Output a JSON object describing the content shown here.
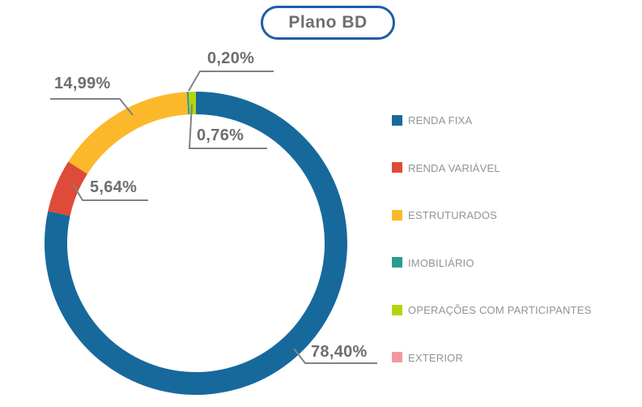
{
  "title": {
    "text": "Plano BD"
  },
  "colors": {
    "title_border": "#1F5DAA",
    "title_text": "#6D6E71",
    "callout_text": "#6D6E71",
    "legend_text": "#919396",
    "leader_line": "#808285",
    "background": "#FFFFFF"
  },
  "chart_data": {
    "type": "pie",
    "subtype": "donut",
    "title": "Plano BD",
    "unit": "%",
    "decimal_separator": ",",
    "direction": "clockwise",
    "start_angle_deg": 0,
    "legend_position": "right",
    "series": [
      {
        "name": "RENDA FIXA",
        "value": 78.4,
        "label": "78,40%",
        "color": "#17699C",
        "labeled": true
      },
      {
        "name": "RENDA VARIÁVEL",
        "value": 5.64,
        "label": "5,64%",
        "color": "#DE4B38",
        "labeled": true
      },
      {
        "name": "ESTRUTURADOS",
        "value": 14.99,
        "label": "14,99%",
        "color": "#FCB82B",
        "labeled": true
      },
      {
        "name": "IMOBILIÁRIO",
        "value": 0.2,
        "label": "0,20%",
        "color": "#2A9D8F",
        "labeled": true
      },
      {
        "name": "OPERAÇÕES COM PARTICIPANTES",
        "value": 0.76,
        "label": "0,76%",
        "color": "#B5D40A",
        "labeled": true
      },
      {
        "name": "EXTERIOR",
        "value": 0.01,
        "label": "",
        "color": "#F4989F",
        "labeled": false
      }
    ]
  }
}
